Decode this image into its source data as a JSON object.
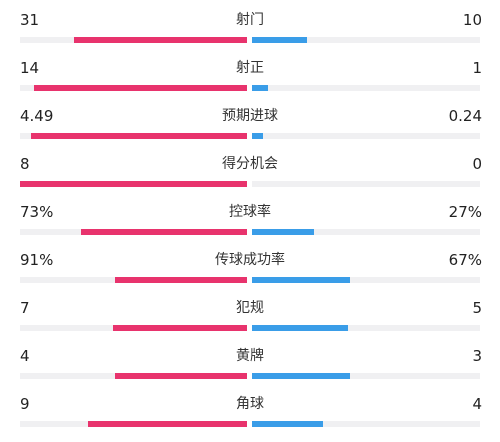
{
  "stats": [
    {
      "label": "射门",
      "left": "31",
      "right": "10",
      "left_share": 0.76,
      "right_share": 0.24
    },
    {
      "label": "射正",
      "left": "14",
      "right": "1",
      "left_share": 0.94,
      "right_share": 0.07
    },
    {
      "label": "预期进球",
      "left": "4.49",
      "right": "0.24",
      "left_share": 0.95,
      "right_share": 0.05
    },
    {
      "label": "得分机会",
      "left": "8",
      "right": "0",
      "left_share": 1.0,
      "right_share": 0.0
    },
    {
      "label": "控球率",
      "left": "73%",
      "right": "27%",
      "left_share": 0.73,
      "right_share": 0.27
    },
    {
      "label": "传球成功率",
      "left": "91%",
      "right": "67%",
      "left_share": 0.58,
      "right_share": 0.43
    },
    {
      "label": "犯规",
      "left": "7",
      "right": "5",
      "left_share": 0.59,
      "right_share": 0.42
    },
    {
      "label": "黄牌",
      "left": "4",
      "right": "3",
      "left_share": 0.58,
      "right_share": 0.43
    },
    {
      "label": "角球",
      "left": "9",
      "right": "4",
      "left_share": 0.7,
      "right_share": 0.31
    }
  ],
  "colors": {
    "left_bar": "#e8336d",
    "right_bar": "#3a9de8",
    "track": "#f0f0f2"
  }
}
